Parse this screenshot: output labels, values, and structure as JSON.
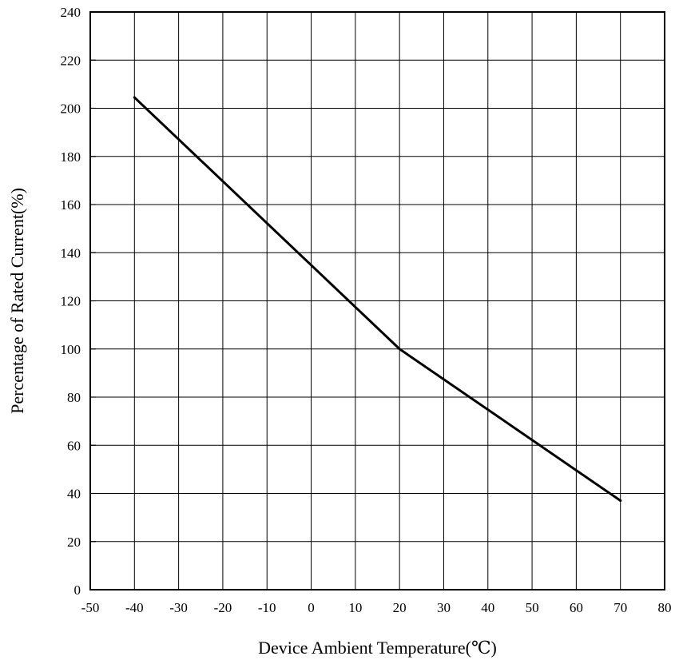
{
  "chart_data": {
    "type": "line",
    "title": "",
    "xlabel": "Device Ambient Temperature(℃)",
    "ylabel": "Percentage of Rated Current(%)",
    "xlim": [
      -50,
      80
    ],
    "ylim": [
      0,
      240
    ],
    "x_ticks": [
      -50,
      -40,
      -30,
      -20,
      -10,
      0,
      10,
      20,
      30,
      40,
      50,
      60,
      70,
      80
    ],
    "y_ticks": [
      0,
      20,
      40,
      60,
      80,
      100,
      120,
      140,
      160,
      180,
      200,
      220,
      240
    ],
    "grid": true,
    "legend": "none",
    "series": [
      {
        "x": [
          -40,
          20,
          70
        ],
        "y": [
          204.5,
          100,
          37
        ],
        "color": "#000000"
      }
    ]
  }
}
